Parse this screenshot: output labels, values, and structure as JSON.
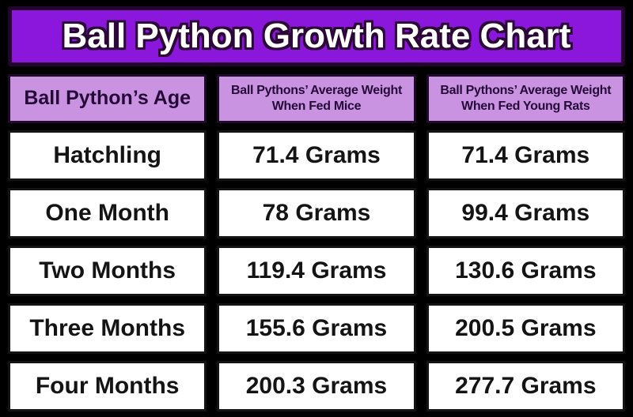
{
  "title": "Ball Python Growth Rate Chart",
  "colors": {
    "background": "#000000",
    "title_bg": "#8b17dd",
    "title_border": "#24052e",
    "title_outline": "#2b0836",
    "title_text": "#ffffff",
    "header_bg": "#c993e2",
    "header_border": "#1e0b28",
    "header_text": "#250a38",
    "cell_bg": "#ffffff",
    "cell_border": "#141414",
    "cell_text": "#141414"
  },
  "table": {
    "headers": [
      {
        "line1": "Ball Python’s Age",
        "line2": ""
      },
      {
        "line1": "Ball Pythons’ Average Weight",
        "line2": "When Fed Mice"
      },
      {
        "line1": "Ball Pythons’ Average Weight",
        "line2": "When Fed Young Rats"
      }
    ],
    "rows": [
      {
        "age": "Hatchling",
        "mice": "71.4 Grams",
        "rats": "71.4 Grams"
      },
      {
        "age": "One Month",
        "mice": "78 Grams",
        "rats": "99.4 Grams"
      },
      {
        "age": "Two Months",
        "mice": "119.4 Grams",
        "rats": "130.6 Grams"
      },
      {
        "age": "Three Months",
        "mice": "155.6 Grams",
        "rats": "200.5 Grams"
      },
      {
        "age": "Four Months",
        "mice": "200.3 Grams",
        "rats": "277.7 Grams"
      }
    ]
  },
  "chart_data": {
    "type": "table",
    "title": "Ball Python Growth Rate Chart",
    "columns": [
      "Ball Python’s Age",
      "Ball Pythons’ Average Weight When Fed Mice",
      "Ball Pythons’ Average Weight When Fed Young Rats"
    ],
    "rows": [
      [
        "Hatchling",
        "71.4 Grams",
        "71.4 Grams"
      ],
      [
        "One Month",
        "78 Grams",
        "99.4 Grams"
      ],
      [
        "Two Months",
        "119.4 Grams",
        "130.6 Grams"
      ],
      [
        "Three Months",
        "155.6 Grams",
        "200.5 Grams"
      ],
      [
        "Four Months",
        "200.3 Grams",
        "277.7 Grams"
      ]
    ],
    "values_grams": {
      "categories": [
        "Hatchling",
        "One Month",
        "Two Months",
        "Three Months",
        "Four Months"
      ],
      "series": [
        {
          "name": "Fed Mice",
          "values": [
            71.4,
            78,
            119.4,
            155.6,
            200.3
          ]
        },
        {
          "name": "Fed Young Rats",
          "values": [
            71.4,
            99.4,
            130.6,
            200.5,
            277.7
          ]
        }
      ],
      "unit": "grams"
    }
  }
}
